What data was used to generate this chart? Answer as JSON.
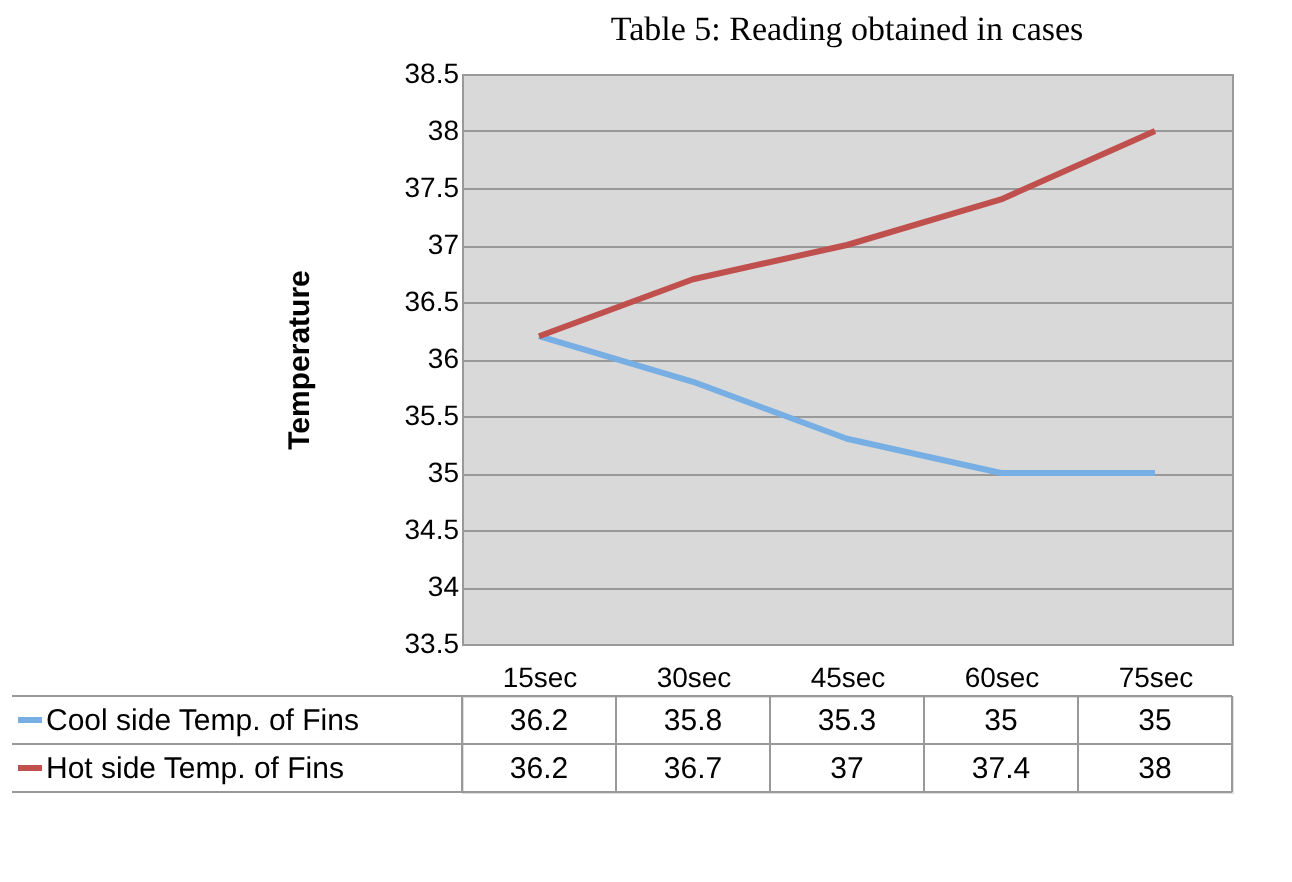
{
  "chart_data": {
    "type": "line",
    "title": "Table 5: Reading obtained in cases",
    "ylabel": "Temperature",
    "categories": [
      "15sec",
      "30sec",
      "45sec",
      "60sec",
      "75sec"
    ],
    "series": [
      {
        "name": "Cool side Temp. of Fins",
        "color": "#77aee3",
        "values": [
          36.2,
          35.8,
          35.3,
          35,
          35
        ]
      },
      {
        "name": "Hot side Temp. of Fins",
        "color": "#c0504d",
        "values": [
          36.2,
          36.7,
          37,
          37.4,
          38
        ]
      }
    ],
    "ylim": [
      33.5,
      38.5
    ],
    "yticks": [
      33.5,
      34,
      34.5,
      35,
      35.5,
      36,
      36.5,
      37,
      37.5,
      38,
      38.5
    ],
    "grid": "y",
    "legend": "bottom",
    "data_labels": true,
    "marker": "none",
    "line_style": "solid"
  }
}
